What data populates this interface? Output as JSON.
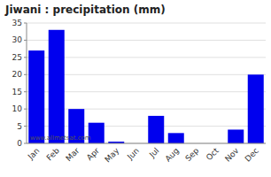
{
  "chart_data": {
    "type": "bar",
    "title": "Jiwani : precipitation (mm)",
    "categories": [
      "Jan",
      "Feb",
      "Mar",
      "Apr",
      "May",
      "Jun",
      "Jul",
      "Aug",
      "Sep",
      "Oct",
      "Nov",
      "Dec"
    ],
    "values": [
      27,
      33,
      10,
      6,
      0.5,
      0,
      8,
      3,
      0,
      0,
      4,
      20
    ],
    "color": "#0000EE",
    "ylim": [
      0,
      35
    ],
    "yticks": [
      0,
      5,
      10,
      15,
      20,
      25,
      30,
      35
    ],
    "grid": true,
    "annotations": [
      "www.allmetsat.com"
    ]
  }
}
